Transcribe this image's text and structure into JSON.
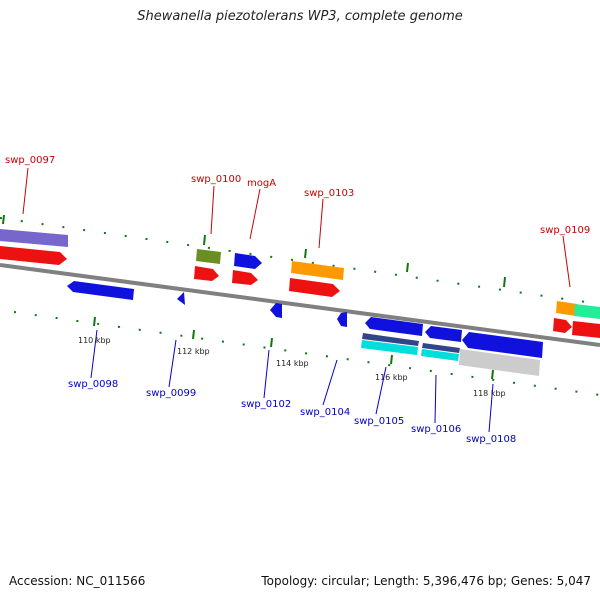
{
  "title": "Shewanella piezotolerans WP3, complete genome",
  "footer": {
    "accession": "Accession: NC_011566",
    "summary": "Topology: circular; Length: 5,396,476 bp; Genes: 5,047"
  },
  "colors": {
    "label_top": "#cc0000",
    "label_bottom": "#0000cc",
    "backbone": "#808080",
    "tick": "#117711"
  },
  "scale_labels": [
    "110 kbp",
    "112 kbp",
    "114 kbp",
    "116 kbp",
    "118 kbp"
  ],
  "top_labels": [
    "swp_0097",
    "swp_0100",
    "mogA",
    "swp_0103",
    "swp_0109"
  ],
  "bottom_labels": [
    "swp_0098",
    "swp_0099",
    "swp_0102",
    "swp_0104",
    "swp_0105",
    "swp_0106",
    "swp_0108"
  ]
}
